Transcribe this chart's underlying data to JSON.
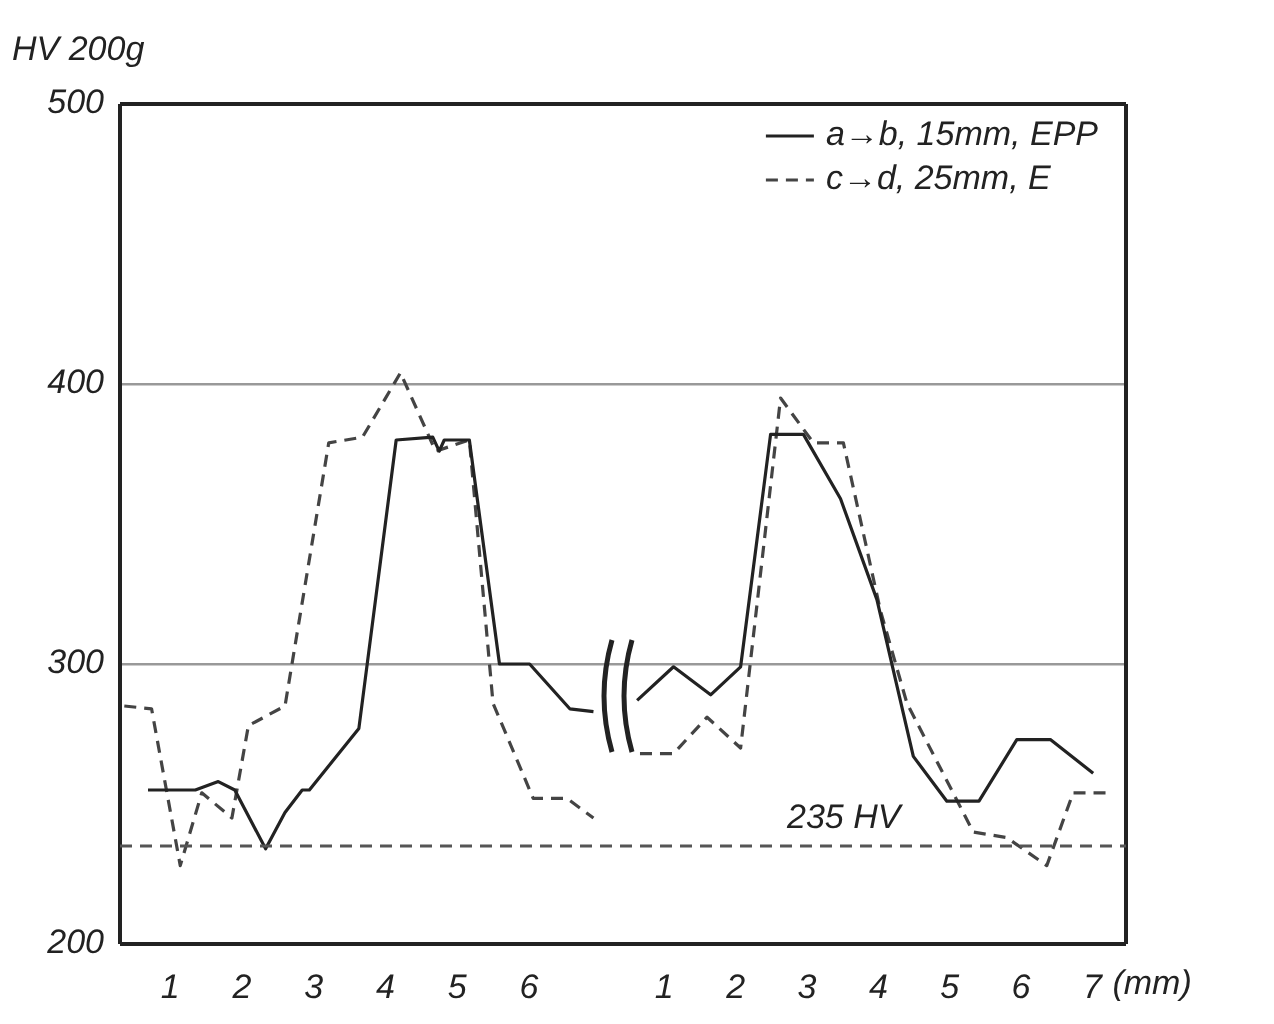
{
  "chart_data": [
    {
      "type": "line",
      "ylabel": "HV 200g",
      "xlim": [
        0.3,
        7.27
      ],
      "xticks": [
        1,
        2,
        3,
        4,
        5,
        6
      ],
      "ylim": [
        200,
        500
      ],
      "yticks": [
        200,
        300,
        400,
        500
      ],
      "grid": "y",
      "marker": "none",
      "series": [
        {
          "color": "#222222",
          "line_style": "solid",
          "x": [
            0.69,
            1.35,
            1.67,
            1.9,
            2.33,
            2.6,
            2.84,
            2.94,
            3.63,
            4.15,
            4.66,
            4.75,
            4.82,
            5.17,
            5.59,
            6.01,
            6.57,
            6.9
          ],
          "values": [
            255,
            255,
            258,
            255,
            234,
            247,
            255,
            255,
            277,
            380,
            381,
            376,
            380,
            380,
            300,
            300,
            284,
            283
          ]
        },
        {
          "color": "#444444",
          "line_style": "dashed",
          "x": [
            0.36,
            0.74,
            1.14,
            1.44,
            1.86,
            2.09,
            2.6,
            3.21,
            3.68,
            4.21,
            4.7,
            5.17,
            5.5,
            6.06,
            6.53,
            6.9
          ],
          "values": [
            285,
            284,
            228,
            254,
            245,
            278,
            285,
            379,
            381,
            404,
            376,
            380,
            286,
            252,
            252,
            245
          ]
        }
      ],
      "ref_lines": [
        {
          "axis": "y",
          "value": 235,
          "color": "#555555",
          "line_style": "dashed"
        }
      ]
    },
    {
      "type": "line",
      "xlabel": "(mm)",
      "xlim": [
        0.38,
        7.47
      ],
      "xticks": [
        1,
        2,
        3,
        4,
        5,
        6,
        7
      ],
      "ylim": [
        200,
        500
      ],
      "yticks": [
        200,
        300,
        400,
        500
      ],
      "tick_labels": "x",
      "grid": "y",
      "legend": "top right",
      "marker": "none",
      "series": [
        {
          "name": "a→b, 15mm, EPP",
          "color": "#222222",
          "line_style": "solid",
          "x": [
            0.62,
            1.13,
            1.65,
            2.07,
            2.49,
            2.95,
            3.47,
            3.98,
            4.49,
            4.96,
            5.41,
            5.94,
            6.41,
            7.01
          ],
          "values": [
            287,
            299,
            289,
            299,
            382,
            382,
            359,
            323,
            267,
            251,
            251,
            273,
            273,
            261
          ]
        },
        {
          "name": "c→d, 25mm, E",
          "color": "#444444",
          "line_style": "dashed",
          "x": [
            0.66,
            1.13,
            1.6,
            2.07,
            2.63,
            3.09,
            3.51,
            4.03,
            4.4,
            5.33,
            5.8,
            6.36,
            6.73,
            7.25
          ],
          "values": [
            268,
            268,
            281,
            270,
            395,
            379,
            379,
            319,
            286,
            240,
            238,
            228,
            254,
            254
          ]
        }
      ],
      "ref_lines": [
        {
          "axis": "y",
          "value": 235,
          "label": "235 HV",
          "color": "#555555",
          "line_style": "dashed"
        }
      ]
    }
  ]
}
